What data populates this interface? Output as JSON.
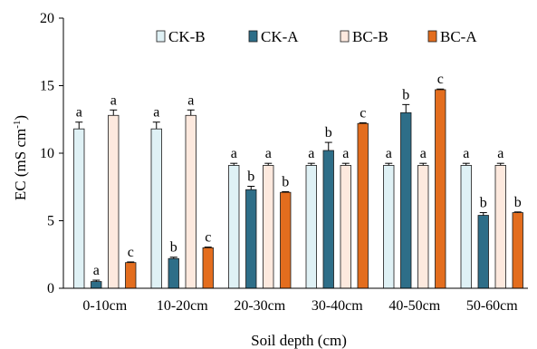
{
  "chart_data": {
    "type": "bar",
    "xlabel": "Soil depth (cm)",
    "ylabel": "EC (mS cm-1)",
    "ylabel_parts": {
      "main": "EC (mS cm",
      "sup": "-1",
      "close": ")"
    },
    "ylim": [
      0,
      20
    ],
    "yticks": [
      "0",
      "5",
      "10",
      "15",
      "20"
    ],
    "grid": false,
    "legend_position": "top",
    "categories": [
      "0-10cm",
      "10-20cm",
      "20-30cm",
      "30-40cm",
      "40-50cm",
      "50-60cm"
    ],
    "series": [
      {
        "name": "CK-B",
        "color": "#dff1f5",
        "values": [
          11.8,
          11.8,
          9.1,
          9.1,
          9.1,
          9.1
        ],
        "errors": [
          0.5,
          0.5,
          0.15,
          0.15,
          0.15,
          0.15
        ],
        "labels": [
          "a",
          "a",
          "a",
          "a",
          "a",
          "a"
        ]
      },
      {
        "name": "CK-A",
        "color": "#2e6e88",
        "values": [
          0.5,
          2.2,
          7.3,
          10.2,
          13.0,
          5.4
        ],
        "errors": [
          0.1,
          0.1,
          0.25,
          0.6,
          0.6,
          0.2
        ],
        "labels": [
          "a",
          "b",
          "b",
          "b",
          "b",
          "b"
        ]
      },
      {
        "name": "BC-B",
        "color": "#fde9de",
        "values": [
          12.8,
          12.8,
          9.1,
          9.1,
          9.1,
          9.1
        ],
        "errors": [
          0.4,
          0.4,
          0.15,
          0.15,
          0.15,
          0.15
        ],
        "labels": [
          "a",
          "a",
          "a",
          "a",
          "a",
          "a"
        ]
      },
      {
        "name": "BC-A",
        "color": "#e36d1e",
        "values": [
          1.9,
          3.0,
          7.1,
          12.2,
          14.7,
          5.6
        ],
        "errors": [
          0.05,
          0.05,
          0.05,
          0.05,
          0.05,
          0.05
        ],
        "labels": [
          "c",
          "c",
          "b",
          "c",
          "c",
          "b"
        ]
      }
    ]
  }
}
